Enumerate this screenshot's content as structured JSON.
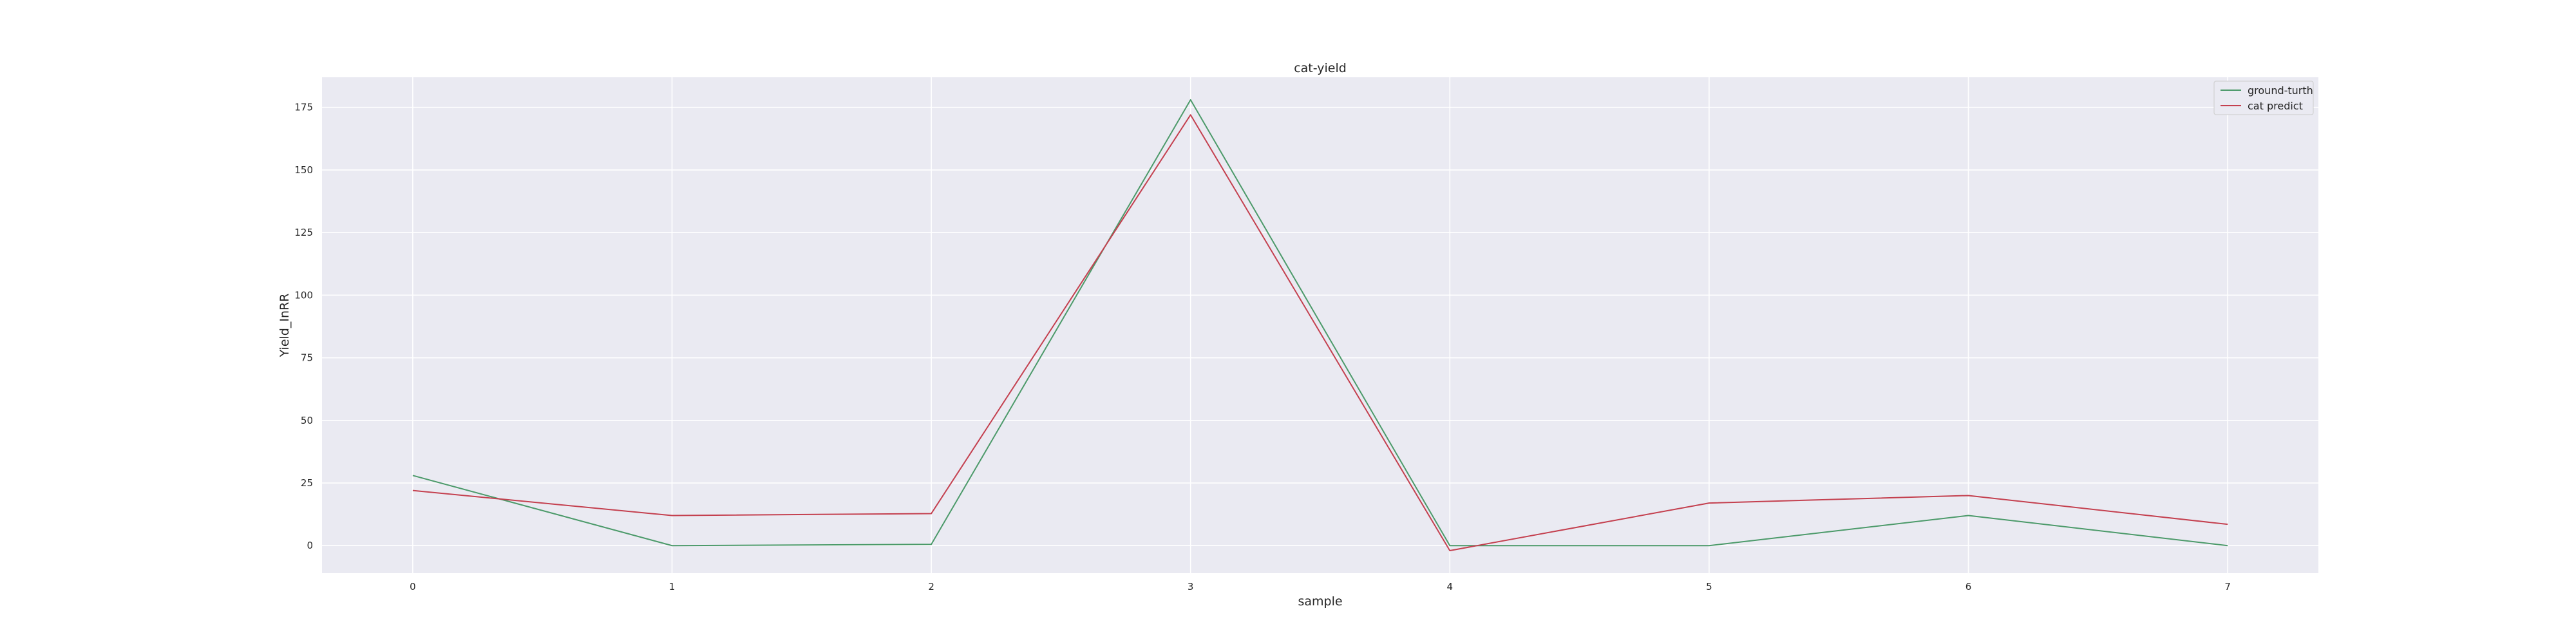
{
  "chart_data": {
    "type": "line",
    "title": "cat-yield",
    "xlabel": "sample",
    "ylabel": "Yield_InRR",
    "x": [
      0,
      1,
      2,
      3,
      4,
      5,
      6,
      7
    ],
    "xlim": [
      -0.35,
      7.35
    ],
    "ylim": [
      -11,
      187
    ],
    "xticks": [
      "0",
      "1",
      "2",
      "3",
      "4",
      "5",
      "6",
      "7"
    ],
    "yticks": [
      0,
      25,
      50,
      75,
      100,
      125,
      150,
      175
    ],
    "grid": true,
    "legend_position": "upper right",
    "series": [
      {
        "name": "ground-turth",
        "color": "#4c9a6a",
        "values": [
          28,
          0,
          0.5,
          178,
          0,
          0,
          12,
          0
        ]
      },
      {
        "name": "cat predict",
        "color": "#c4404f",
        "values": [
          22,
          12,
          12.8,
          172,
          -2,
          17,
          20,
          8.5
        ]
      }
    ]
  },
  "colors": {
    "plot_background": "#eaeaf2",
    "grid": "#ffffff"
  }
}
